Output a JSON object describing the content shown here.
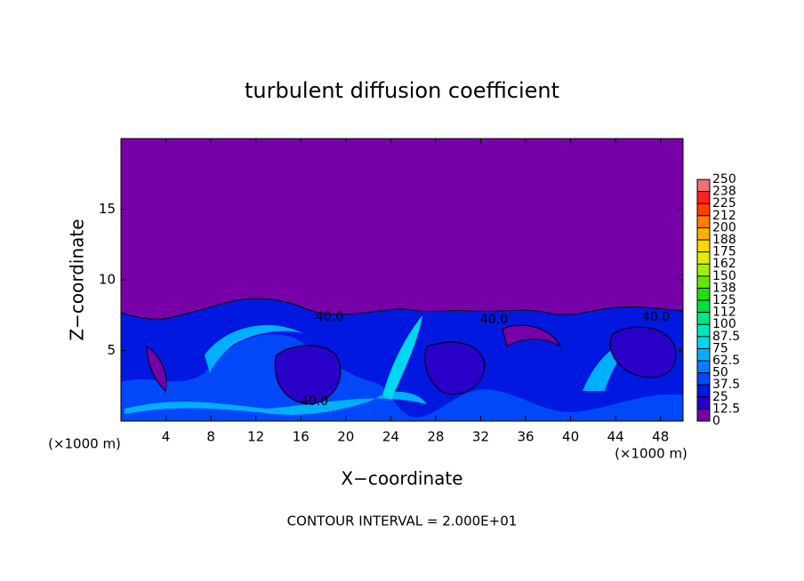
{
  "chart_data": {
    "type": "contour",
    "title": "turbulent diffusion coefficient",
    "x_label": "X−coordinate",
    "y_label": "Z−coordinate",
    "x_unit": "(×1000 m)",
    "x_unit_right": "(×1000 m)",
    "footer": "CONTOUR INTERVAL = 2.000E+01",
    "xlim": [
      0,
      50
    ],
    "xticks": [
      4,
      8,
      12,
      16,
      20,
      24,
      28,
      32,
      36,
      40,
      44,
      48
    ],
    "ylim": [
      0,
      20
    ],
    "yticks": [
      5,
      10,
      15
    ],
    "contour_labels": [
      "40.0",
      "40.0",
      "40.0",
      "40.0"
    ],
    "colorbar": {
      "levels": [
        0,
        12.5,
        25,
        37.5,
        50,
        62.5,
        75,
        87.5,
        100,
        112,
        125,
        138,
        150,
        162,
        175,
        188,
        200,
        212,
        225,
        238,
        250
      ],
      "colors": [
        "#7800a8",
        "#2800c8",
        "#0018e0",
        "#0048f8",
        "#0080ff",
        "#00b0ff",
        "#00d8f0",
        "#00e8b8",
        "#00e880",
        "#00e040",
        "#20e000",
        "#60e800",
        "#a0f000",
        "#e0f000",
        "#ffd800",
        "#ffb000",
        "#ff8000",
        "#ff4000",
        "#ff2020",
        "#f07070"
      ]
    }
  }
}
